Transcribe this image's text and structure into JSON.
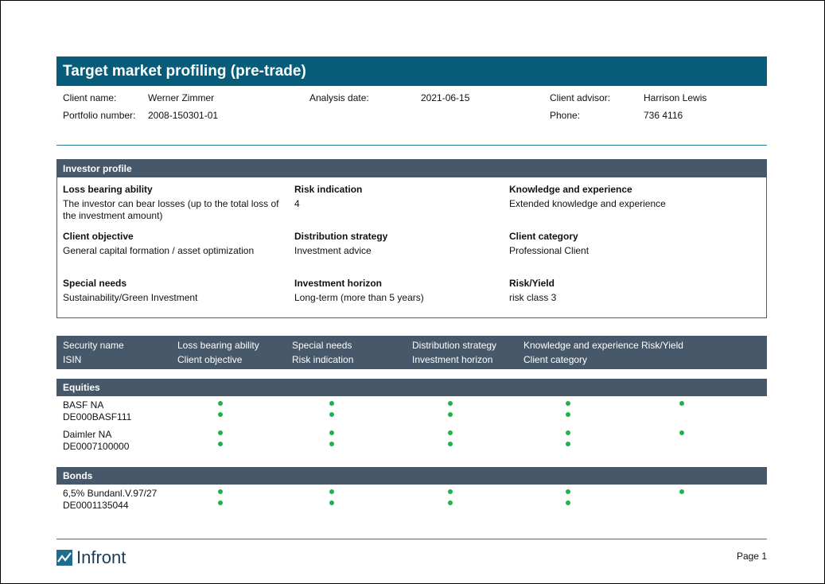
{
  "header": {
    "title": "Target market profiling (pre-trade)",
    "fields": [
      {
        "label": "Client name:",
        "value": "Werner Zimmer"
      },
      {
        "label": "Analysis date:",
        "value": "2021-06-15"
      },
      {
        "label": "Client advisor:",
        "value": "Harrison Lewis"
      },
      {
        "label": "Portfolio number:",
        "value": "2008-150301-01"
      },
      {
        "label": "Phone:",
        "value": "736 4116"
      }
    ]
  },
  "investor_profile": {
    "title": "Investor profile",
    "items": [
      {
        "label": "Loss bearing ability",
        "value": "The investor can bear losses (up to the total loss of the investment amount)"
      },
      {
        "label": "Risk indication",
        "value": "4"
      },
      {
        "label": "Knowledge and experience",
        "value": "Extended knowledge and experience"
      },
      {
        "label": "Client objective",
        "value": "General capital formation / asset optimization"
      },
      {
        "label": "Distribution strategy",
        "value": "Investment advice"
      },
      {
        "label": "Client category",
        "value": "Professional Client"
      },
      {
        "label": "Special needs",
        "value": "Sustainability/Green Investment"
      },
      {
        "label": "Investment horizon",
        "value": "Long-term (more than 5 years)"
      },
      {
        "label": "Risk/Yield",
        "value": "risk class 3"
      }
    ]
  },
  "securities": {
    "columns": [
      {
        "top": "Security name",
        "bottom": "ISIN"
      },
      {
        "top": "Loss bearing ability",
        "bottom": "Client objective"
      },
      {
        "top": "Special needs",
        "bottom": "Risk indication"
      },
      {
        "top": "Distribution strategy",
        "bottom": "Investment horizon"
      },
      {
        "top": "Knowledge and experience",
        "bottom": "Client category"
      },
      {
        "top": "Risk/Yield"
      }
    ],
    "groups": [
      {
        "name": "Equities",
        "rows": [
          {
            "name": "BASF NA",
            "isin": "DE000BASF111"
          },
          {
            "name": "Daimler NA",
            "isin": "DE0007100000"
          }
        ]
      },
      {
        "name": "Bonds",
        "rows": [
          {
            "name": "6,5% Bundanl.V.97/27",
            "isin": "DE0001135044"
          }
        ]
      }
    ]
  },
  "footer": {
    "logo": "Infront",
    "page": "Page 1"
  }
}
